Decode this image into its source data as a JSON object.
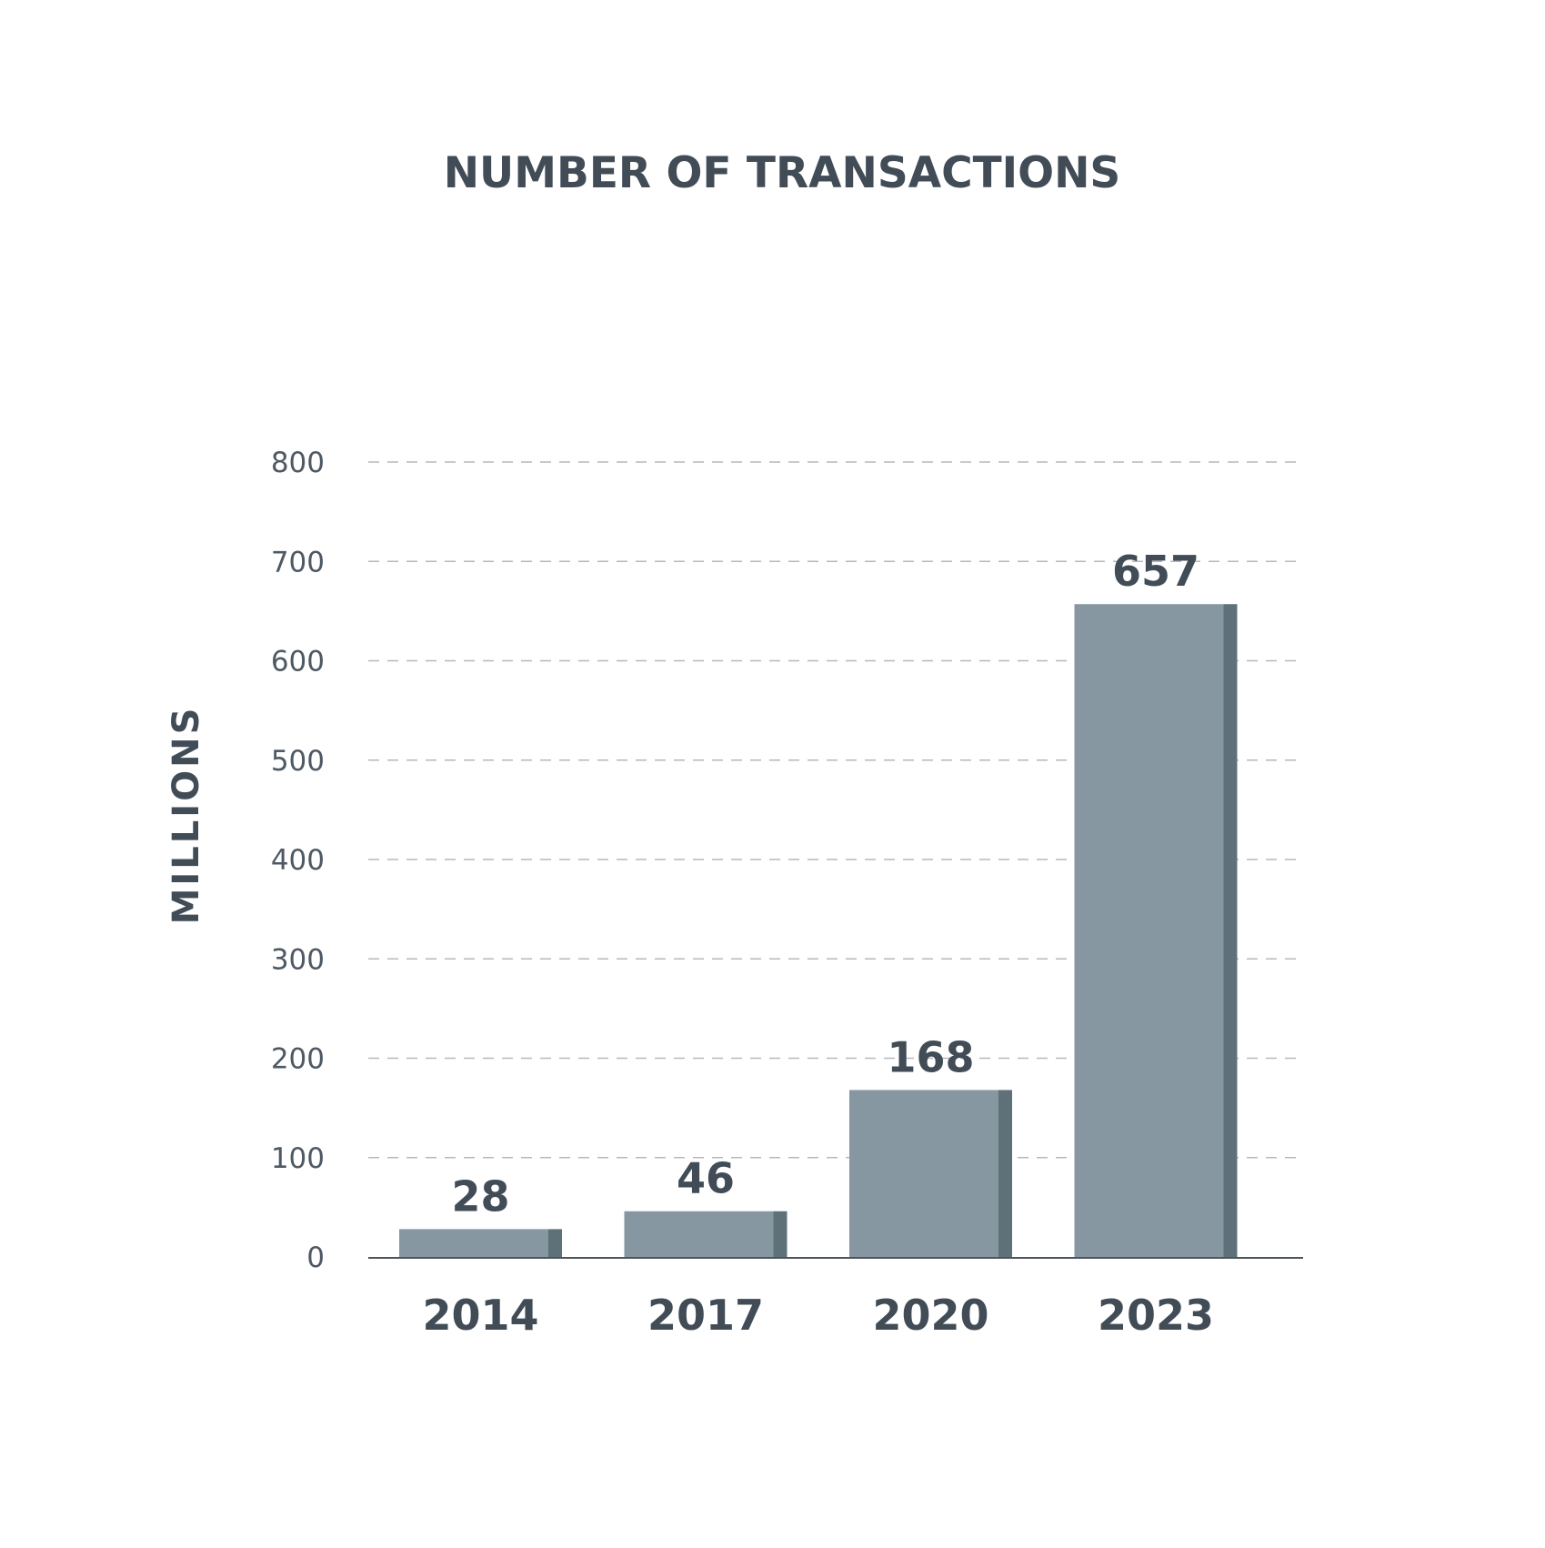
{
  "colors": {
    "text": "#414c57",
    "tick_text": "#4e5964",
    "bar_face": "#8697a1",
    "bar_side": "#5e7078",
    "grid": "#b4b9bd",
    "axis": "#4c555d"
  },
  "chart_data": {
    "type": "bar",
    "title": "NUMBER OF TRANSACTIONS",
    "xlabel": "",
    "ylabel": "MILLIONS",
    "categories": [
      "2014",
      "2017",
      "2020",
      "2023"
    ],
    "values": [
      28,
      46,
      168,
      657
    ],
    "data_labels": [
      "28",
      "46",
      "168",
      "657"
    ],
    "ylim": [
      0,
      800
    ],
    "yticks": [
      0,
      100,
      200,
      300,
      400,
      500,
      600,
      700,
      800
    ],
    "ytick_labels": [
      "0",
      "100",
      "200",
      "300",
      "400",
      "500",
      "600",
      "700",
      "800"
    ],
    "grid": true,
    "grid_style": "dashed",
    "legend": "none"
  }
}
